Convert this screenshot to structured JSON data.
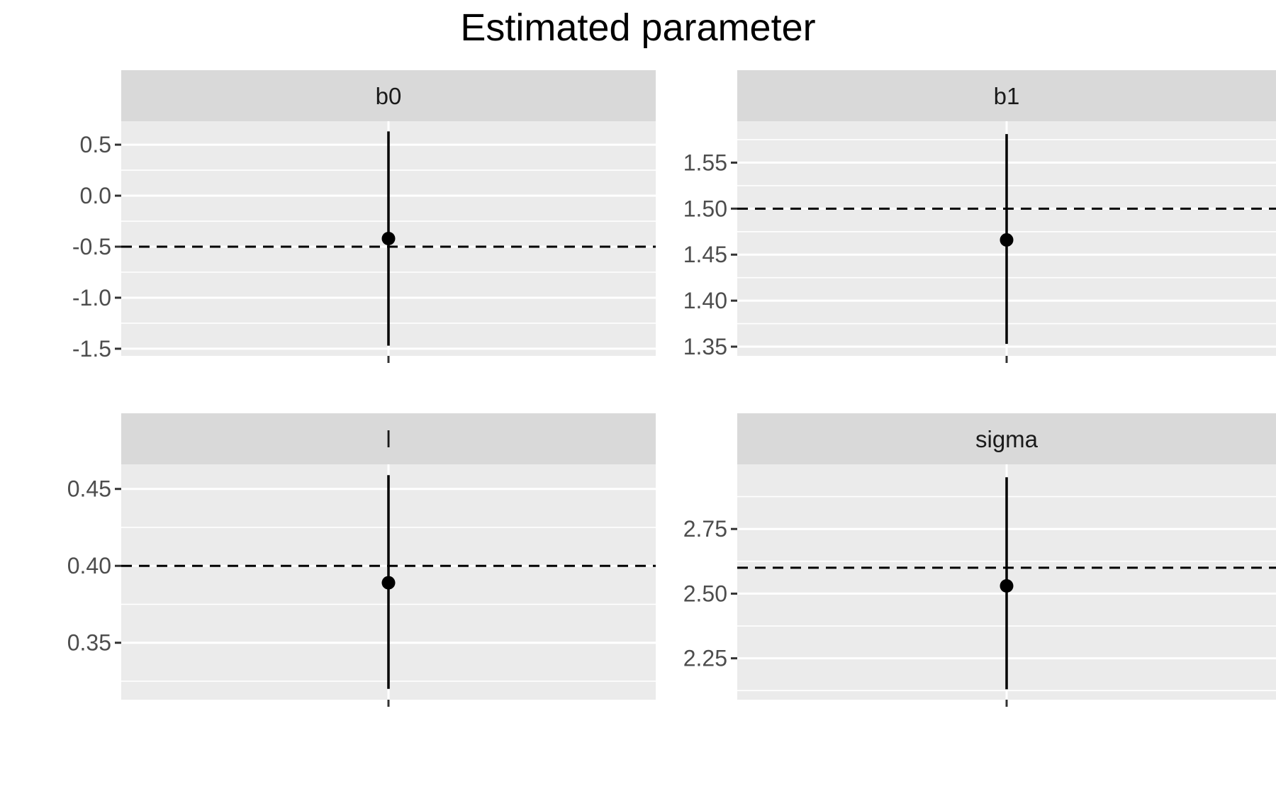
{
  "chart_data": {
    "type": "pointrange",
    "title": "Estimated parameter",
    "xlabel": "",
    "ylabel": "",
    "grid": true,
    "facets": [
      {
        "name": "b0",
        "estimate": -0.42,
        "lower": -1.47,
        "upper": 0.63,
        "reference": -0.5,
        "ylim": [
          -1.57,
          0.73
        ],
        "ticks": [
          -1.5,
          -1.0,
          -0.5,
          0.0,
          0.5
        ],
        "tick_labels": [
          "-1.5",
          "-1.0",
          "-0.5",
          "0.0",
          "0.5"
        ]
      },
      {
        "name": "b1",
        "estimate": 1.466,
        "lower": 1.353,
        "upper": 1.581,
        "reference": 1.5,
        "ylim": [
          1.34,
          1.595
        ],
        "ticks": [
          1.35,
          1.4,
          1.45,
          1.5,
          1.55
        ],
        "tick_labels": [
          "1.35",
          "1.40",
          "1.45",
          "1.50",
          "1.55"
        ]
      },
      {
        "name": "l",
        "estimate": 0.389,
        "lower": 0.32,
        "upper": 0.459,
        "reference": 0.4,
        "ylim": [
          0.313,
          0.466
        ],
        "ticks": [
          0.35,
          0.4,
          0.45
        ],
        "tick_labels": [
          "0.35",
          "0.40",
          "0.45"
        ]
      },
      {
        "name": "sigma",
        "estimate": 2.53,
        "lower": 2.13,
        "upper": 2.95,
        "reference": 2.6,
        "ylim": [
          2.09,
          3.0
        ],
        "ticks": [
          2.25,
          2.5,
          2.75
        ],
        "tick_labels": [
          "2.25",
          "2.50",
          "2.75"
        ]
      }
    ],
    "colors": {
      "panel_background": "#ebebeb",
      "strip_background": "#d9d9d9",
      "grid": "#ffffff",
      "point": "#000000",
      "reference_line": "#000000",
      "tick": "#333333"
    }
  }
}
